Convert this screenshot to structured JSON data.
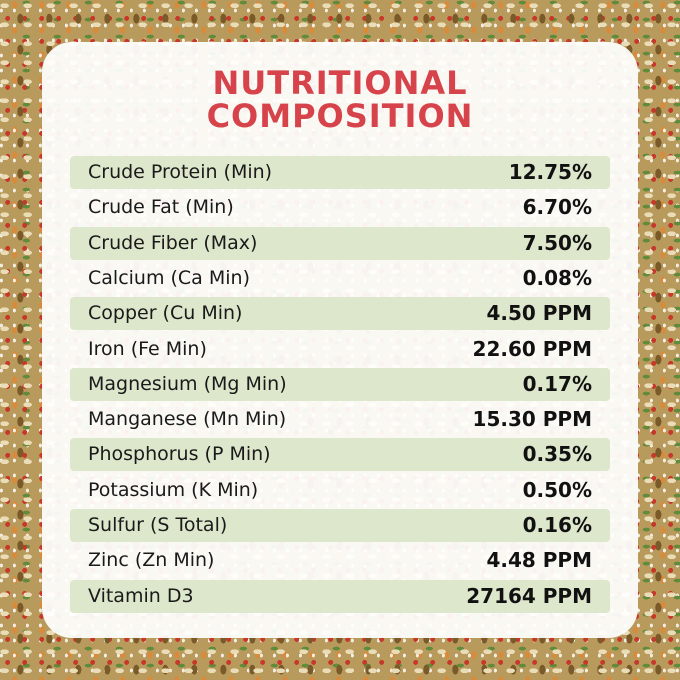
{
  "title": [
    "NUTRITIONAL",
    "COMPOSITION"
  ],
  "table": {
    "rows": [
      [
        "Crude Protein (Min)",
        "12.75%"
      ],
      [
        "Crude Fat (Min)",
        "6.70%"
      ],
      [
        "Crude Fiber (Max)",
        "7.50%"
      ],
      [
        "Calcium (Ca Min)",
        "0.08%"
      ],
      [
        "Copper (Cu Min)",
        "4.50 PPM"
      ],
      [
        "Iron (Fe Min)",
        "22.60 PPM"
      ],
      [
        "Magnesium (Mg Min)",
        "0.17%"
      ],
      [
        "Manganese (Mn Min)",
        "15.30 PPM"
      ],
      [
        "Phosphorus (P Min)",
        "0.35%"
      ],
      [
        "Potassium (K Min)",
        "0.50%"
      ],
      [
        "Sulfur (S Total)",
        "0.16%"
      ],
      [
        "Zinc (Zn Min)",
        "4.48 PPM"
      ],
      [
        "Vitamin D3",
        "27164 PPM"
      ]
    ]
  }
}
